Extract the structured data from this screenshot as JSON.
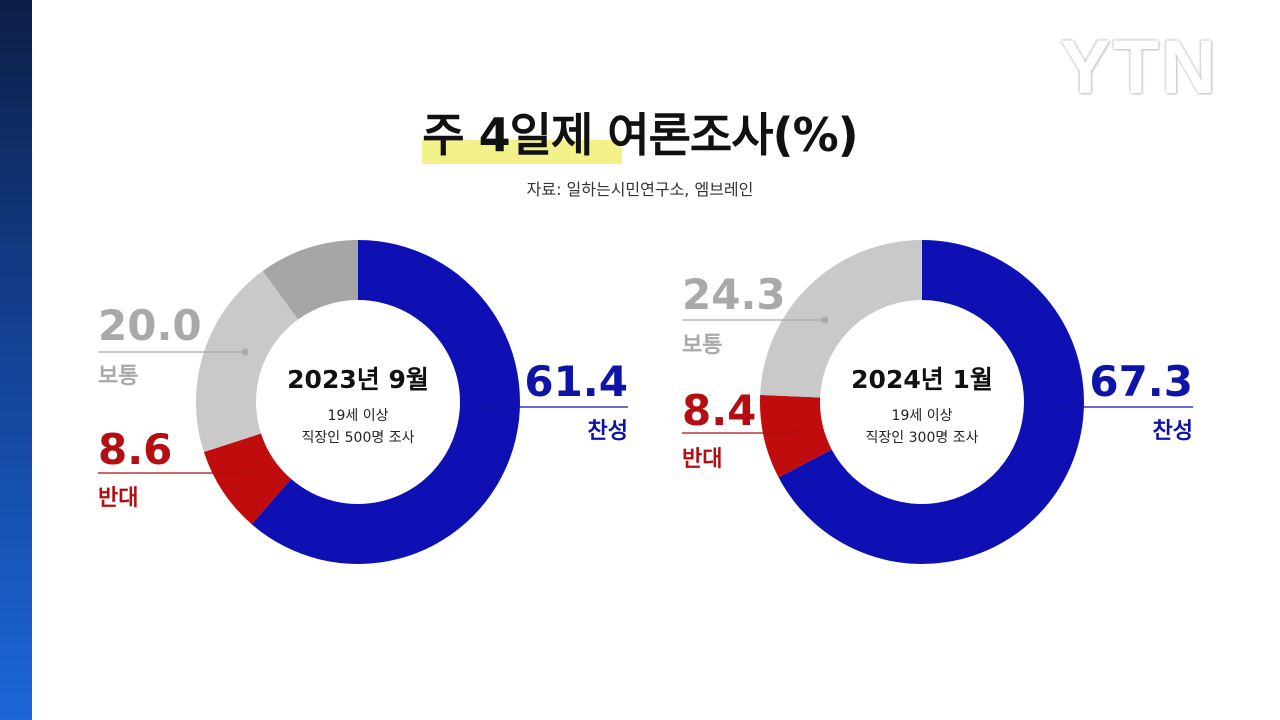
{
  "header": {
    "title": "주 4일제 여론조사(%)",
    "source": "자료: 일하는시민연구소, 엠브레인",
    "logo": "YTN"
  },
  "colors": {
    "agree": "#0e10b4",
    "disagree": "#c00c0c",
    "neutral": "#c9c9c9",
    "other": "#a6a6a6",
    "agree_label": "#0e14a8",
    "disagree_label": "#b50e12",
    "neutral_label": "#a9a9a9"
  },
  "chart_data": [
    {
      "type": "pie",
      "center_title": "2023년 9월",
      "center_sub1": "19세 이상",
      "center_sub2": "직장인 500명 조사",
      "slices": [
        {
          "key": "agree",
          "label": "찬성",
          "value": 61.4
        },
        {
          "key": "disagree",
          "label": "반대",
          "value": 8.6
        },
        {
          "key": "neutral",
          "label": "보통",
          "value": 20.0
        },
        {
          "key": "other",
          "label": "",
          "value": 10.0
        }
      ],
      "value_labels": {
        "agree": "61.4",
        "disagree": "8.6",
        "neutral": "20.0"
      }
    },
    {
      "type": "pie",
      "center_title": "2024년 1월",
      "center_sub1": "19세 이상",
      "center_sub2": "직장인 300명 조사",
      "slices": [
        {
          "key": "agree",
          "label": "찬성",
          "value": 67.3
        },
        {
          "key": "disagree",
          "label": "반대",
          "value": 8.4
        },
        {
          "key": "neutral",
          "label": "보통",
          "value": 24.3
        }
      ],
      "value_labels": {
        "agree": "67.3",
        "disagree": "8.4",
        "neutral": "24.3"
      }
    }
  ]
}
